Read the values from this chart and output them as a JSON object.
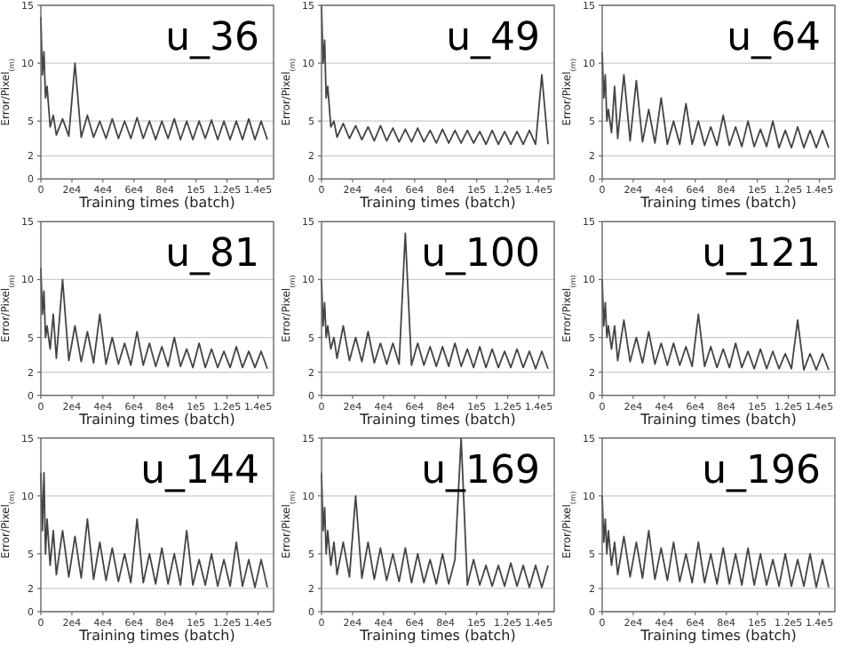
{
  "chart_data": [
    {
      "type": "line",
      "title": "u_36",
      "xlabel": "Training times (batch)",
      "ylabel": "Error/Pixel$_{(m)}$",
      "x": [
        0,
        1000,
        2000,
        3000,
        4000,
        6000,
        8000,
        10000,
        14000,
        18000,
        22000,
        26000,
        30000,
        34000,
        38000,
        42000,
        46000,
        50000,
        54000,
        58000,
        62000,
        66000,
        70000,
        74000,
        78000,
        82000,
        86000,
        90000,
        94000,
        98000,
        102000,
        106000,
        110000,
        114000,
        118000,
        122000,
        126000,
        130000,
        134000,
        138000,
        142000,
        146000
      ],
      "xlim": [
        0,
        150000
      ],
      "xticks": [
        {
          "value": 0,
          "label": "0"
        },
        {
          "value": 20000,
          "label": "2e4"
        },
        {
          "value": 40000,
          "label": "4e4"
        },
        {
          "value": 60000,
          "label": "6e4"
        },
        {
          "value": 80000,
          "label": "8e4"
        },
        {
          "value": 100000,
          "label": "1e5"
        },
        {
          "value": 120000,
          "label": "1.2e5"
        },
        {
          "value": 140000,
          "label": "1.4e5"
        }
      ],
      "ylim": [
        0,
        15
      ],
      "yticks": [
        0,
        2,
        5,
        10,
        15
      ],
      "grid": "y",
      "color": "#444444",
      "values": [
        14,
        9,
        11,
        7,
        8,
        4.5,
        5.5,
        3.8,
        5.2,
        3.7,
        10,
        3.6,
        5.5,
        3.6,
        5,
        3.5,
        5.2,
        3.5,
        5,
        3.5,
        5.3,
        3.5,
        5,
        3.4,
        5,
        3.5,
        5.2,
        3.4,
        5,
        3.4,
        5,
        3.5,
        5.1,
        3.4,
        5,
        3.4,
        5,
        3.4,
        5.2,
        3.4,
        5,
        3.4
      ]
    },
    {
      "type": "line",
      "title": "u_49",
      "xlabel": "Training times (batch)",
      "ylabel": "Error/Pixel$_{(m)}$",
      "x": [
        0,
        1000,
        2000,
        3000,
        4000,
        6000,
        8000,
        10000,
        14000,
        18000,
        22000,
        26000,
        30000,
        34000,
        38000,
        42000,
        46000,
        50000,
        54000,
        58000,
        62000,
        66000,
        70000,
        74000,
        78000,
        82000,
        86000,
        90000,
        94000,
        98000,
        102000,
        106000,
        110000,
        114000,
        118000,
        122000,
        126000,
        130000,
        134000,
        138000,
        142000,
        146000
      ],
      "xlim": [
        0,
        150000
      ],
      "xticks": [
        {
          "value": 0,
          "label": "0"
        },
        {
          "value": 20000,
          "label": "2e4"
        },
        {
          "value": 40000,
          "label": "4e4"
        },
        {
          "value": 60000,
          "label": "6e4"
        },
        {
          "value": 80000,
          "label": "8e4"
        },
        {
          "value": 100000,
          "label": "1e5"
        },
        {
          "value": 120000,
          "label": "1.2e5"
        },
        {
          "value": 140000,
          "label": "1.4e5"
        }
      ],
      "ylim": [
        0,
        15
      ],
      "yticks": [
        0,
        2,
        5,
        10,
        15
      ],
      "grid": "y",
      "color": "#444444",
      "values": [
        15,
        10,
        12,
        7,
        8,
        4.5,
        5,
        3.6,
        4.8,
        3.5,
        4.6,
        3.4,
        4.5,
        3.3,
        4.6,
        3.3,
        4.4,
        3.2,
        4.3,
        3.2,
        4.4,
        3.2,
        4.2,
        3.1,
        4.3,
        3.1,
        4.2,
        3.1,
        4.2,
        3.1,
        4.1,
        3.0,
        4.2,
        3.0,
        4.1,
        3.0,
        4.1,
        3.0,
        4.2,
        3.0,
        9,
        3.0
      ]
    },
    {
      "type": "line",
      "title": "u_64",
      "xlabel": "Training times (batch)",
      "ylabel": "Error/Pixel$_{(m)}$",
      "x": [
        0,
        1000,
        2000,
        3000,
        4000,
        6000,
        8000,
        10000,
        14000,
        18000,
        22000,
        26000,
        30000,
        34000,
        38000,
        42000,
        46000,
        50000,
        54000,
        58000,
        62000,
        66000,
        70000,
        74000,
        78000,
        82000,
        86000,
        90000,
        94000,
        98000,
        102000,
        106000,
        110000,
        114000,
        118000,
        122000,
        126000,
        130000,
        134000,
        138000,
        142000,
        146000
      ],
      "xlim": [
        0,
        150000
      ],
      "xticks": [
        {
          "value": 0,
          "label": "0"
        },
        {
          "value": 20000,
          "label": "2e4"
        },
        {
          "value": 40000,
          "label": "4e4"
        },
        {
          "value": 60000,
          "label": "6e4"
        },
        {
          "value": 80000,
          "label": "8e4"
        },
        {
          "value": 100000,
          "label": "1e5"
        },
        {
          "value": 120000,
          "label": "1.2e5"
        },
        {
          "value": 140000,
          "label": "1.4e5"
        }
      ],
      "ylim": [
        0,
        15
      ],
      "yticks": [
        0,
        2,
        5,
        10,
        15
      ],
      "grid": "y",
      "color": "#444444",
      "values": [
        11,
        7,
        9,
        5,
        6,
        4,
        8,
        3.5,
        9,
        3.3,
        8.5,
        3.2,
        6,
        3.1,
        7,
        3.0,
        5,
        3.0,
        6.5,
        3.0,
        5,
        2.9,
        4.5,
        2.9,
        5.5,
        2.9,
        4.5,
        2.8,
        5,
        2.8,
        4.3,
        2.8,
        5,
        2.7,
        4.2,
        2.7,
        4.5,
        2.7,
        4.2,
        2.7,
        4.2,
        2.7
      ]
    },
    {
      "type": "line",
      "title": "u_81",
      "xlabel": "Training times (batch)",
      "ylabel": "Error/Pixel$_{(m)}$",
      "x": [
        0,
        1000,
        2000,
        3000,
        4000,
        6000,
        8000,
        10000,
        14000,
        18000,
        22000,
        26000,
        30000,
        34000,
        38000,
        42000,
        46000,
        50000,
        54000,
        58000,
        62000,
        66000,
        70000,
        74000,
        78000,
        82000,
        86000,
        90000,
        94000,
        98000,
        102000,
        106000,
        110000,
        114000,
        118000,
        122000,
        126000,
        130000,
        134000,
        138000,
        142000,
        146000
      ],
      "xlim": [
        0,
        150000
      ],
      "xticks": [
        {
          "value": 0,
          "label": "0"
        },
        {
          "value": 20000,
          "label": "2e4"
        },
        {
          "value": 40000,
          "label": "4e4"
        },
        {
          "value": 60000,
          "label": "6e4"
        },
        {
          "value": 80000,
          "label": "8e4"
        },
        {
          "value": 100000,
          "label": "1e5"
        },
        {
          "value": 120000,
          "label": "1.2e5"
        },
        {
          "value": 140000,
          "label": "1.4e5"
        }
      ],
      "ylim": [
        0,
        15
      ],
      "yticks": [
        0,
        2,
        5,
        10,
        15
      ],
      "grid": "y",
      "color": "#444444",
      "values": [
        11,
        7,
        9,
        5,
        6,
        4,
        7,
        3.2,
        10,
        3.0,
        6,
        2.9,
        5.5,
        2.8,
        7,
        2.7,
        5,
        2.7,
        4.5,
        2.6,
        5.5,
        2.6,
        4.5,
        2.5,
        4.2,
        2.5,
        5,
        2.5,
        4,
        2.4,
        4.5,
        2.4,
        4,
        2.4,
        3.8,
        2.4,
        4.2,
        2.4,
        3.8,
        2.4,
        3.8,
        2.3
      ]
    },
    {
      "type": "line",
      "title": "u_100",
      "xlabel": "Training times (batch)",
      "ylabel": "Error/Pixel$_{(m)}$",
      "x": [
        0,
        1000,
        2000,
        3000,
        4000,
        6000,
        8000,
        10000,
        14000,
        18000,
        22000,
        26000,
        30000,
        34000,
        38000,
        42000,
        46000,
        50000,
        54000,
        58000,
        62000,
        66000,
        70000,
        74000,
        78000,
        82000,
        86000,
        90000,
        94000,
        98000,
        102000,
        106000,
        110000,
        114000,
        118000,
        122000,
        126000,
        130000,
        134000,
        138000,
        142000,
        146000
      ],
      "xlim": [
        0,
        150000
      ],
      "xticks": [
        {
          "value": 0,
          "label": "0"
        },
        {
          "value": 20000,
          "label": "2e4"
        },
        {
          "value": 40000,
          "label": "4e4"
        },
        {
          "value": 60000,
          "label": "6e4"
        },
        {
          "value": 80000,
          "label": "8e4"
        },
        {
          "value": 100000,
          "label": "1e5"
        },
        {
          "value": 120000,
          "label": "1.2e5"
        },
        {
          "value": 140000,
          "label": "1.4e5"
        }
      ],
      "ylim": [
        0,
        15
      ],
      "yticks": [
        0,
        2,
        5,
        10,
        15
      ],
      "grid": "y",
      "color": "#444444",
      "values": [
        10,
        6,
        8,
        5,
        6,
        4,
        5,
        3.2,
        6,
        3.0,
        5,
        2.9,
        5.5,
        2.8,
        4.5,
        2.7,
        4.5,
        2.7,
        14,
        2.6,
        4.5,
        2.6,
        4.2,
        2.5,
        4.2,
        2.5,
        4.5,
        2.5,
        4,
        2.4,
        4.2,
        2.4,
        4,
        2.4,
        3.8,
        2.4,
        4,
        2.4,
        3.8,
        2.3,
        3.8,
        2.3
      ]
    },
    {
      "type": "line",
      "title": "u_121",
      "xlabel": "Training times (batch)",
      "ylabel": "Error/Pixel$_{(m)}$",
      "x": [
        0,
        1000,
        2000,
        3000,
        4000,
        6000,
        8000,
        10000,
        14000,
        18000,
        22000,
        26000,
        30000,
        34000,
        38000,
        42000,
        46000,
        50000,
        54000,
        58000,
        62000,
        66000,
        70000,
        74000,
        78000,
        82000,
        86000,
        90000,
        94000,
        98000,
        102000,
        106000,
        110000,
        114000,
        118000,
        122000,
        126000,
        130000,
        134000,
        138000,
        142000,
        146000
      ],
      "xlim": [
        0,
        150000
      ],
      "xticks": [
        {
          "value": 0,
          "label": "0"
        },
        {
          "value": 20000,
          "label": "2e4"
        },
        {
          "value": 40000,
          "label": "4e4"
        },
        {
          "value": 60000,
          "label": "6e4"
        },
        {
          "value": 80000,
          "label": "8e4"
        },
        {
          "value": 100000,
          "label": "1e5"
        },
        {
          "value": 120000,
          "label": "1.2e5"
        },
        {
          "value": 140000,
          "label": "1.4e5"
        }
      ],
      "ylim": [
        0,
        15
      ],
      "yticks": [
        0,
        2,
        5,
        10,
        15
      ],
      "grid": "y",
      "color": "#444444",
      "values": [
        10,
        6,
        8,
        5,
        6,
        4,
        6,
        3.0,
        6.5,
        2.9,
        5,
        2.8,
        5.5,
        2.7,
        4.5,
        2.6,
        4.5,
        2.6,
        4.2,
        2.5,
        7,
        2.5,
        4.2,
        2.4,
        4,
        2.4,
        4.5,
        2.4,
        3.8,
        2.3,
        4,
        2.3,
        3.8,
        2.3,
        3.6,
        2.3,
        6.5,
        2.2,
        3.6,
        2.2,
        3.6,
        2.2
      ]
    },
    {
      "type": "line",
      "title": "u_144",
      "xlabel": "Training times (batch)",
      "ylabel": "Error/Pixel$_{(m)}$",
      "x": [
        0,
        1000,
        2000,
        3000,
        4000,
        6000,
        8000,
        10000,
        14000,
        18000,
        22000,
        26000,
        30000,
        34000,
        38000,
        42000,
        46000,
        50000,
        54000,
        58000,
        62000,
        66000,
        70000,
        74000,
        78000,
        82000,
        86000,
        90000,
        94000,
        98000,
        102000,
        106000,
        110000,
        114000,
        118000,
        122000,
        126000,
        130000,
        134000,
        138000,
        142000,
        146000
      ],
      "xlim": [
        0,
        150000
      ],
      "xticks": [
        {
          "value": 0,
          "label": "0"
        },
        {
          "value": 20000,
          "label": "2e4"
        },
        {
          "value": 40000,
          "label": "4e4"
        },
        {
          "value": 60000,
          "label": "6e4"
        },
        {
          "value": 80000,
          "label": "8e4"
        },
        {
          "value": 100000,
          "label": "1e5"
        },
        {
          "value": 120000,
          "label": "1.2e5"
        },
        {
          "value": 140000,
          "label": "1.4e5"
        }
      ],
      "ylim": [
        0,
        15
      ],
      "yticks": [
        0,
        2,
        5,
        10,
        15
      ],
      "grid": "y",
      "color": "#444444",
      "values": [
        12,
        7,
        12,
        5,
        8,
        4,
        7,
        3.2,
        7,
        3.0,
        6.5,
        2.9,
        8,
        2.8,
        6,
        2.7,
        5.5,
        2.6,
        5,
        2.5,
        8,
        2.5,
        5,
        2.4,
        5.5,
        2.4,
        5,
        2.3,
        7,
        2.3,
        4.5,
        2.3,
        5,
        2.2,
        4.5,
        2.2,
        6,
        2.2,
        4.5,
        2.1,
        4.5,
        2.1
      ]
    },
    {
      "type": "line",
      "title": "u_169",
      "xlabel": "Training times (batch)",
      "ylabel": "Error/Pixel$_{(m)}$",
      "x": [
        0,
        1000,
        2000,
        3000,
        4000,
        6000,
        8000,
        10000,
        14000,
        18000,
        22000,
        26000,
        30000,
        34000,
        38000,
        42000,
        46000,
        50000,
        54000,
        58000,
        62000,
        66000,
        70000,
        74000,
        78000,
        82000,
        86000,
        90000,
        94000,
        98000,
        102000,
        106000,
        110000,
        114000,
        118000,
        122000,
        126000,
        130000,
        134000,
        138000,
        142000,
        146000
      ],
      "xlim": [
        0,
        150000
      ],
      "xticks": [
        {
          "value": 0,
          "label": "0"
        },
        {
          "value": 20000,
          "label": "2e4"
        },
        {
          "value": 40000,
          "label": "4e4"
        },
        {
          "value": 60000,
          "label": "6e4"
        },
        {
          "value": 80000,
          "label": "8e4"
        },
        {
          "value": 100000,
          "label": "1e5"
        },
        {
          "value": 120000,
          "label": "1.2e5"
        },
        {
          "value": 140000,
          "label": "1.4e5"
        }
      ],
      "ylim": [
        0,
        15
      ],
      "yticks": [
        0,
        2,
        5,
        10,
        15
      ],
      "grid": "y",
      "color": "#444444",
      "values": [
        12,
        7,
        9,
        5,
        7,
        4,
        6,
        3.2,
        6,
        3.0,
        10,
        2.9,
        6,
        2.8,
        5.5,
        2.7,
        5,
        2.6,
        5.5,
        2.5,
        5,
        2.5,
        4.5,
        2.4,
        5,
        2.4,
        4.5,
        15,
        2.3,
        4.5,
        2.3,
        4,
        2.2,
        4,
        2.2,
        4.2,
        2.2,
        4,
        2.1,
        4,
        2.1,
        4
      ]
    },
    {
      "type": "line",
      "title": "u_196",
      "xlabel": "Training times (batch)",
      "ylabel": "Error/Pixel$_{(m)}$",
      "x": [
        0,
        1000,
        2000,
        3000,
        4000,
        6000,
        8000,
        10000,
        14000,
        18000,
        22000,
        26000,
        30000,
        34000,
        38000,
        42000,
        46000,
        50000,
        54000,
        58000,
        62000,
        66000,
        70000,
        74000,
        78000,
        82000,
        86000,
        90000,
        94000,
        98000,
        102000,
        106000,
        110000,
        114000,
        118000,
        122000,
        126000,
        130000,
        134000,
        138000,
        142000,
        146000
      ],
      "xlim": [
        0,
        150000
      ],
      "xticks": [
        {
          "value": 0,
          "label": "0"
        },
        {
          "value": 20000,
          "label": "2e4"
        },
        {
          "value": 40000,
          "label": "4e4"
        },
        {
          "value": 60000,
          "label": "6e4"
        },
        {
          "value": 80000,
          "label": "8e4"
        },
        {
          "value": 100000,
          "label": "1e5"
        },
        {
          "value": 120000,
          "label": "1.2e5"
        },
        {
          "value": 140000,
          "label": "1.4e5"
        }
      ],
      "ylim": [
        0,
        15
      ],
      "yticks": [
        0,
        2,
        5,
        10,
        15
      ],
      "grid": "y",
      "color": "#444444",
      "values": [
        10,
        6,
        8,
        5,
        7,
        4,
        6,
        3.2,
        6.5,
        3.0,
        6,
        2.9,
        7,
        2.8,
        5.5,
        2.7,
        6,
        2.6,
        5,
        2.5,
        6,
        2.5,
        5,
        2.4,
        5.5,
        2.4,
        5,
        2.3,
        5.5,
        2.3,
        5,
        2.3,
        4.5,
        2.2,
        5,
        2.2,
        4.5,
        2.2,
        5,
        2.1,
        4.5,
        2.1
      ]
    }
  ]
}
